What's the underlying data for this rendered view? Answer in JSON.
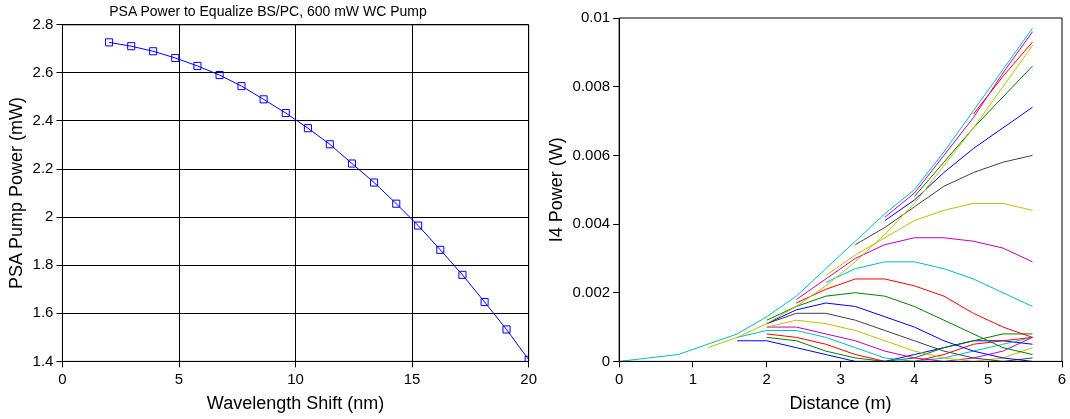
{
  "chart_data": [
    {
      "type": "line",
      "title": "PSA Power to Equalize BS/PC, 600 mW WC Pump",
      "xlabel": "Wavelength Shift (nm)",
      "ylabel": "PSA Pump Power (mW)",
      "x": [
        2,
        2.95,
        3.89,
        4.84,
        5.79,
        6.74,
        7.68,
        8.63,
        9.58,
        10.53,
        11.47,
        12.42,
        13.37,
        14.32,
        15.26,
        16.21,
        17.16,
        18.11,
        19.05,
        20
      ],
      "series": [
        {
          "color": "#0000ff",
          "values": [
            2.727,
            2.711,
            2.69,
            2.662,
            2.629,
            2.591,
            2.545,
            2.49,
            2.433,
            2.37,
            2.303,
            2.223,
            2.144,
            2.056,
            1.965,
            1.864,
            1.76,
            1.647,
            1.533,
            1.407
          ]
        }
      ],
      "xlim": [
        0,
        20
      ],
      "xticks": [
        0,
        5,
        10,
        15,
        20
      ],
      "ylim": [
        1.4,
        2.8
      ],
      "yticks": [
        1.4,
        1.6,
        1.8,
        2,
        2.2,
        2.4,
        2.6,
        2.8
      ],
      "grid": true,
      "line_style": "solid",
      "marker": "square"
    },
    {
      "type": "line",
      "xlabel": "Distance (m)",
      "ylabel": "I4 Power (W)",
      "x": [
        0,
        0.4,
        0.8,
        1.2,
        1.6,
        2.0,
        2.4,
        2.8,
        3.2,
        3.6,
        4.0,
        4.4,
        4.8,
        5.2,
        5.6
      ],
      "series": [
        {
          "color": "#00bfbf",
          "values": [
            0,
            0.0001,
            0.0002,
            0.0005,
            0.0008,
            0.0013,
            0.0019,
            0.0027,
            0.0035,
            0.0043,
            0.005,
            0.0061,
            0.0073,
            0.0085,
            0.0097
          ]
        },
        {
          "color": "#bf00bf",
          "x": [
            3.6,
            4.0,
            4.4,
            4.8,
            5.2,
            5.6
          ],
          "values": [
            0.0042,
            0.0049,
            0.006,
            0.0071,
            0.0084,
            0.0096
          ]
        },
        {
          "color": "#ff0000",
          "x": [
            4.8,
            5.2,
            5.6
          ],
          "values": [
            0.0072,
            0.0083,
            0.0093
          ]
        },
        {
          "color": "#bfbf00",
          "x": [
            1.2,
            1.6,
            2.0,
            2.4,
            2.8,
            3.2,
            3.6,
            4.0,
            4.4,
            4.8,
            5.2,
            5.6
          ],
          "values": [
            0.0004,
            0.0007,
            0.0011,
            0.0016,
            0.0022,
            0.0029,
            0.0037,
            0.0046,
            0.0057,
            0.0068,
            0.008,
            0.0092
          ]
        },
        {
          "color": "#008000",
          "x": [
            4.0,
            4.4,
            4.8,
            5.2,
            5.6
          ],
          "values": [
            0.0048,
            0.0058,
            0.0068,
            0.0077,
            0.0086
          ]
        },
        {
          "color": "#0000ff",
          "x": [
            3.6,
            4.0,
            4.4,
            4.8,
            5.2,
            5.6
          ],
          "values": [
            0.0041,
            0.0047,
            0.0055,
            0.0062,
            0.0068,
            0.0074
          ]
        },
        {
          "color": "#404040",
          "x": [
            3.2,
            3.6,
            4.0,
            4.4,
            4.8,
            5.2,
            5.6
          ],
          "values": [
            0.0034,
            0.0039,
            0.0045,
            0.0051,
            0.0055,
            0.0058,
            0.006
          ]
        },
        {
          "color": "#bfbf00",
          "x": [
            2.8,
            3.2,
            3.6,
            4.0,
            4.4,
            4.8,
            5.2,
            5.6
          ],
          "values": [
            0.0025,
            0.0031,
            0.0036,
            0.0041,
            0.0044,
            0.0046,
            0.0046,
            0.0044
          ]
        },
        {
          "color": "#bf00bf",
          "x": [
            2.4,
            2.8,
            3.2,
            3.6,
            4.0,
            4.4,
            4.8,
            5.2,
            5.6
          ],
          "values": [
            0.0018,
            0.0024,
            0.003,
            0.0034,
            0.0036,
            0.0036,
            0.0035,
            0.0033,
            0.0029
          ]
        },
        {
          "color": "#00bfbf",
          "x": [
            2.8,
            3.2,
            3.6,
            4.0,
            4.4,
            4.8,
            5.2,
            5.6
          ],
          "values": [
            0.0023,
            0.0027,
            0.0029,
            0.0029,
            0.0027,
            0.0024,
            0.002,
            0.0016
          ]
        },
        {
          "color": "#ff0000",
          "x": [
            2.4,
            2.8,
            3.2,
            3.6,
            4.0,
            4.4,
            4.8,
            5.2,
            5.6
          ],
          "values": [
            0.0017,
            0.0021,
            0.0024,
            0.0024,
            0.0022,
            0.0019,
            0.0014,
            0.001,
            0.0007
          ]
        },
        {
          "color": "#008000",
          "x": [
            2.0,
            2.4,
            2.8,
            3.2,
            3.6,
            4.0,
            4.4,
            4.8,
            5.2,
            5.6
          ],
          "values": [
            0.0012,
            0.0016,
            0.0019,
            0.002,
            0.0019,
            0.0016,
            0.0012,
            0.0008,
            0.0004,
            0.0002
          ]
        },
        {
          "color": "#0000ff",
          "x": [
            2.0,
            2.4,
            2.8,
            3.2,
            3.6,
            4.0,
            4.4,
            4.8,
            5.2,
            5.6
          ],
          "values": [
            0.0011,
            0.0015,
            0.0017,
            0.0016,
            0.0013,
            0.001,
            0.0006,
            0.0003,
            0.0001,
            0
          ]
        },
        {
          "color": "#404040",
          "x": [
            2.0,
            2.4,
            2.8,
            3.2,
            3.6,
            4.0,
            4.4,
            4.8,
            5.2,
            5.6
          ],
          "values": [
            0.0011,
            0.0014,
            0.0014,
            0.0012,
            0.0009,
            0.0006,
            0.0003,
            0.0001,
            0,
            0.0001
          ]
        },
        {
          "color": "#bfbf00",
          "x": [
            2.0,
            2.4,
            2.8,
            3.2,
            3.6,
            4.0,
            4.4,
            4.8,
            5.2,
            5.6
          ],
          "values": [
            0.001,
            0.0012,
            0.0011,
            0.0009,
            0.0006,
            0.0003,
            0.0001,
            0,
            0.0001,
            0.0004
          ]
        },
        {
          "color": "#bf00bf",
          "x": [
            2.0,
            2.4,
            2.8,
            3.2,
            3.6,
            4.0,
            4.4,
            4.8,
            5.2,
            5.6
          ],
          "values": [
            0.001,
            0.001,
            0.0008,
            0.0006,
            0.0003,
            0.0001,
            0,
            0.0001,
            0.0003,
            0.0007
          ]
        },
        {
          "color": "#00bfbf",
          "x": [
            1.6,
            2.0,
            2.4,
            2.8,
            3.2,
            3.6,
            4.0,
            4.4,
            4.8,
            5.2,
            5.6
          ],
          "values": [
            0.0007,
            0.0009,
            0.0009,
            0.0007,
            0.0004,
            0.0001,
            0,
            0.0001,
            0.0003,
            0.0005,
            0.0007
          ]
        },
        {
          "color": "#ff0000",
          "x": [
            2.0,
            2.4,
            2.8,
            3.2,
            3.6,
            4.0,
            4.4,
            4.8,
            5.2,
            5.6
          ],
          "values": [
            0.0008,
            0.0007,
            0.0005,
            0.0002,
            0,
            0,
            0.0002,
            0.0005,
            0.0006,
            0.0007
          ]
        },
        {
          "color": "#008000",
          "x": [
            2.0,
            2.4,
            2.8,
            3.2,
            3.6,
            4.0,
            4.4,
            4.8,
            5.2,
            5.6
          ],
          "values": [
            0.0007,
            0.0006,
            0.0003,
            0.0001,
            0,
            0.0001,
            0.0004,
            0.0006,
            0.0008,
            0.0008
          ]
        },
        {
          "color": "#0000ff",
          "x": [
            1.6,
            2.0,
            2.4,
            2.8,
            3.2,
            3.6,
            4.0,
            4.4,
            4.8,
            5.2,
            5.6
          ],
          "values": [
            0.0006,
            0.0006,
            0.0004,
            0.0002,
            0,
            0,
            0.0002,
            0.0004,
            0.0006,
            0.0006,
            0.0005
          ]
        }
      ],
      "xlim": [
        0,
        6
      ],
      "xticks": [
        0,
        1,
        2,
        3,
        4,
        5,
        6
      ],
      "ylim": [
        0,
        0.01
      ],
      "yticks": [
        0,
        0.002,
        0.004,
        0.006,
        0.008,
        0.01
      ],
      "line_style": "solid",
      "marker": "none"
    }
  ]
}
